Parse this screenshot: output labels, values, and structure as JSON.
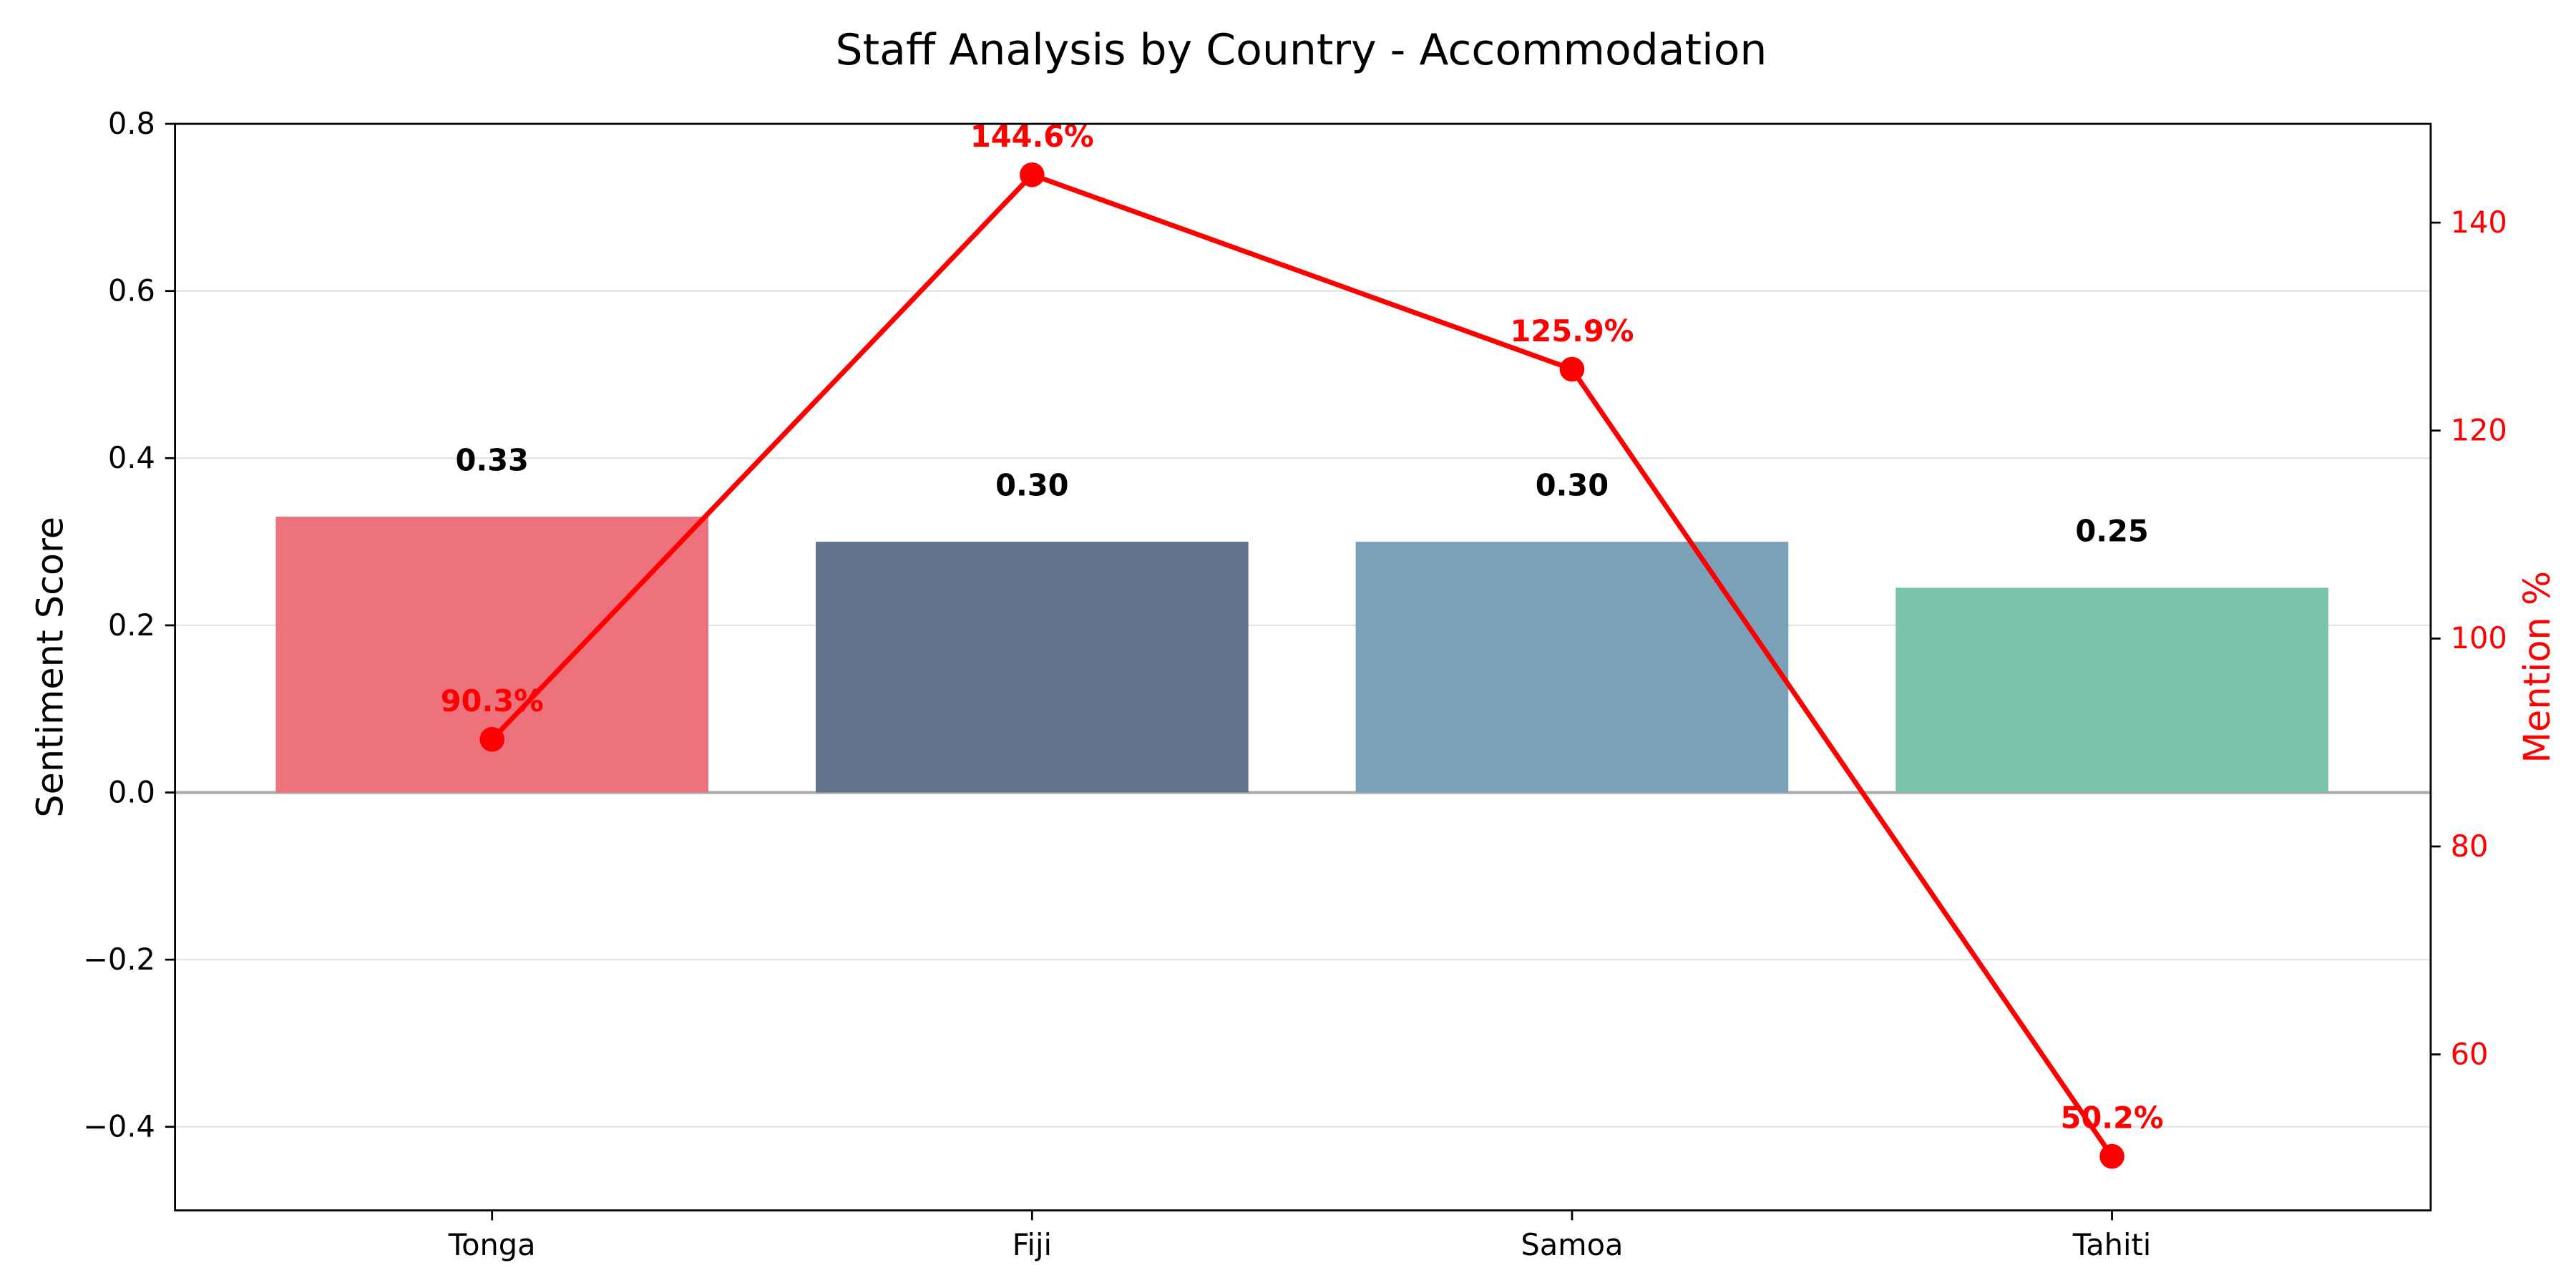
{
  "chart_data": {
    "type": "bar",
    "title": "Staff Analysis by Country - Accommodation",
    "categories": [
      "Tonga",
      "Fiji",
      "Samoa",
      "Tahiti"
    ],
    "ylabel": "Sentiment Score",
    "ylim": [
      -0.5,
      0.8
    ],
    "yticks": [
      -0.4,
      -0.2,
      0.0,
      0.2,
      0.4,
      0.6,
      0.8
    ],
    "ytick_labels": [
      "−0.4",
      "−0.2",
      "0.0",
      "0.2",
      "0.4",
      "0.6",
      "0.8"
    ],
    "grid": true,
    "series": [
      {
        "type": "bar",
        "values": [
          0.33,
          0.3,
          0.3,
          0.245
        ],
        "labels": [
          "0.33",
          "0.30",
          "0.30",
          "0.25"
        ],
        "colors": [
          "#ee727b",
          "#62728a",
          "#7aa1b8",
          "#7ac3ab"
        ]
      },
      {
        "type": "line",
        "axis": "right",
        "values": [
          90.3,
          144.6,
          125.9,
          50.2
        ],
        "labels": [
          "90.3%",
          "144.6%",
          "125.9%",
          "50.2%"
        ],
        "color": "#ff0000"
      }
    ],
    "y2label": "Mention %",
    "y2lim": [
      45,
      149.5
    ],
    "y2ticks": [
      60,
      80,
      100,
      120,
      140
    ],
    "y2tick_labels": [
      "60",
      "80",
      "100",
      "120",
      "140"
    ]
  }
}
